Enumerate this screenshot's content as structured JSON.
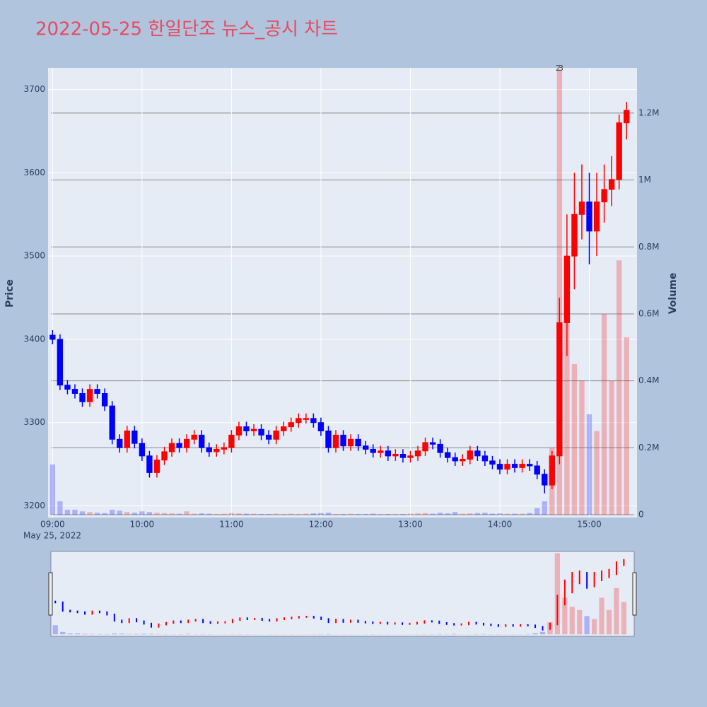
{
  "chart_data": {
    "type": "candlestick",
    "title": "2022-05-25 한일단조 뉴스_공시 차트",
    "yaxis_title": "Price",
    "y2axis_title": "Volume",
    "x_date_label": "May 25, 2022",
    "increasing_color": "#ff0000",
    "decreasing_color": "#0000ff",
    "x": [
      "09:00",
      "09:05",
      "09:10",
      "09:15",
      "09:20",
      "09:25",
      "09:30",
      "09:35",
      "09:40",
      "09:45",
      "09:50",
      "09:55",
      "10:00",
      "10:05",
      "10:10",
      "10:15",
      "10:20",
      "10:25",
      "10:30",
      "10:35",
      "10:40",
      "10:45",
      "10:50",
      "10:55",
      "11:00",
      "11:05",
      "11:10",
      "11:15",
      "11:20",
      "11:25",
      "11:30",
      "11:35",
      "11:40",
      "11:45",
      "11:50",
      "11:55",
      "12:00",
      "12:05",
      "12:10",
      "12:15",
      "12:20",
      "12:25",
      "12:30",
      "12:35",
      "12:40",
      "12:45",
      "12:50",
      "12:55",
      "13:00",
      "13:05",
      "13:10",
      "13:15",
      "13:20",
      "13:25",
      "13:30",
      "13:35",
      "13:40",
      "13:45",
      "13:50",
      "13:55",
      "14:00",
      "14:05",
      "14:10",
      "14:15",
      "14:20",
      "14:25",
      "14:30",
      "14:35",
      "14:40",
      "14:45",
      "14:50",
      "14:55",
      "15:00",
      "15:05",
      "15:10",
      "15:15",
      "15:20",
      "15:25"
    ],
    "open": [
      3405,
      3400,
      3345,
      3340,
      3335,
      3325,
      3340,
      3335,
      3320,
      3280,
      3270,
      3290,
      3275,
      3260,
      3240,
      3255,
      3265,
      3275,
      3270,
      3280,
      3285,
      3270,
      3265,
      3268,
      3270,
      3285,
      3295,
      3290,
      3292,
      3285,
      3280,
      3290,
      3295,
      3300,
      3305,
      3305,
      3300,
      3290,
      3270,
      3285,
      3272,
      3280,
      3272,
      3268,
      3264,
      3266,
      3260,
      3262,
      3258,
      3260,
      3266,
      3276,
      3274,
      3264,
      3258,
      3254,
      3256,
      3266,
      3260,
      3254,
      3250,
      3244,
      3250,
      3246,
      3250,
      3248,
      3238,
      3225,
      3260,
      3420,
      3500,
      3550,
      3565,
      3530,
      3565,
      3580,
      3592,
      3660
    ],
    "high": [
      3411,
      3406,
      3351,
      3346,
      3341,
      3346,
      3346,
      3341,
      3326,
      3286,
      3296,
      3296,
      3281,
      3266,
      3261,
      3271,
      3281,
      3281,
      3286,
      3291,
      3291,
      3276,
      3274,
      3276,
      3291,
      3301,
      3301,
      3298,
      3298,
      3291,
      3296,
      3301,
      3306,
      3311,
      3311,
      3311,
      3306,
      3296,
      3291,
      3291,
      3286,
      3286,
      3278,
      3274,
      3272,
      3272,
      3268,
      3268,
      3266,
      3272,
      3282,
      3282,
      3280,
      3270,
      3264,
      3262,
      3272,
      3272,
      3266,
      3260,
      3256,
      3256,
      3256,
      3256,
      3256,
      3254,
      3244,
      3266,
      3450,
      3550,
      3600,
      3610,
      3600,
      3600,
      3610,
      3620,
      3670,
      3685
    ],
    "low": [
      3394,
      3339,
      3334,
      3329,
      3319,
      3319,
      3329,
      3314,
      3274,
      3264,
      3264,
      3269,
      3254,
      3234,
      3234,
      3249,
      3259,
      3264,
      3264,
      3274,
      3264,
      3259,
      3259,
      3262,
      3264,
      3279,
      3284,
      3284,
      3279,
      3274,
      3274,
      3284,
      3289,
      3294,
      3299,
      3294,
      3284,
      3264,
      3264,
      3266,
      3266,
      3266,
      3262,
      3258,
      3258,
      3254,
      3254,
      3252,
      3252,
      3254,
      3260,
      3268,
      3258,
      3252,
      3248,
      3248,
      3250,
      3254,
      3248,
      3244,
      3238,
      3238,
      3240,
      3240,
      3242,
      3232,
      3215,
      3220,
      3250,
      3380,
      3460,
      3520,
      3490,
      3500,
      3540,
      3560,
      3580,
      3640
    ],
    "close": [
      3400,
      3345,
      3340,
      3335,
      3325,
      3340,
      3335,
      3320,
      3280,
      3270,
      3290,
      3275,
      3260,
      3240,
      3255,
      3265,
      3275,
      3270,
      3280,
      3285,
      3270,
      3265,
      3268,
      3270,
      3285,
      3295,
      3290,
      3292,
      3285,
      3280,
      3290,
      3295,
      3300,
      3305,
      3305,
      3300,
      3290,
      3270,
      3285,
      3272,
      3280,
      3272,
      3268,
      3264,
      3266,
      3260,
      3262,
      3258,
      3260,
      3266,
      3276,
      3274,
      3264,
      3258,
      3254,
      3256,
      3266,
      3260,
      3254,
      3250,
      3244,
      3250,
      3246,
      3250,
      3248,
      3238,
      3225,
      3260,
      3420,
      3500,
      3550,
      3565,
      3530,
      3565,
      3580,
      3592,
      3660,
      3675
    ],
    "volume": [
      150000,
      40000,
      15000,
      15000,
      10000,
      8000,
      6000,
      5000,
      15000,
      12000,
      8000,
      6000,
      10000,
      8000,
      6000,
      5000,
      4000,
      3000,
      10000,
      3000,
      4000,
      3000,
      2000,
      3000,
      5000,
      4000,
      3000,
      3000,
      2000,
      2000,
      3000,
      2000,
      3000,
      2000,
      3000,
      4000,
      5000,
      6000,
      2000,
      2000,
      3000,
      2000,
      2000,
      3000,
      2000,
      2000,
      2000,
      2000,
      3000,
      4000,
      5000,
      3000,
      6000,
      4000,
      8000,
      3000,
      4000,
      5000,
      6000,
      3000,
      4000,
      3000,
      3000,
      3000,
      5000,
      20000,
      40000,
      200000,
      1330000,
      600000,
      450000,
      400000,
      300000,
      250000,
      600000,
      400000,
      760000,
      530000
    ],
    "xlim": [
      "08:57",
      "15:32"
    ],
    "xticks": [
      "09:00",
      "10:00",
      "11:00",
      "12:00",
      "13:00",
      "14:00",
      "15:00"
    ],
    "ylim": [
      3186,
      3726
    ],
    "yticks": [
      3200,
      3300,
      3400,
      3500,
      3600,
      3700
    ],
    "y2lim": [
      -8400,
      1335000
    ],
    "y2ticks": [
      0,
      {
        "value": 200000,
        "label": "0.2M"
      },
      {
        "value": 400000,
        "label": "0.4M"
      },
      {
        "value": 600000,
        "label": "0.6M"
      },
      {
        "value": 800000,
        "label": "0.8M"
      },
      {
        "value": 1000000,
        "label": "1M"
      },
      {
        "value": 1200000,
        "label": "1.2M"
      }
    ],
    "annotations": [
      {
        "x": "14:40",
        "text": "2"
      },
      {
        "x": "14:41",
        "text": "3"
      }
    ],
    "grid": true,
    "rangeslider": true
  }
}
